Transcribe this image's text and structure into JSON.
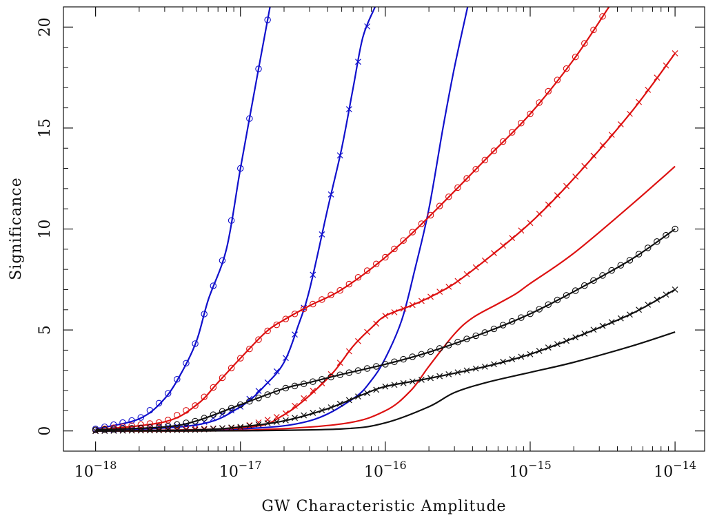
{
  "chart_data": {
    "type": "line",
    "title": "",
    "xlabel": "GW Characteristic Amplitude",
    "ylabel": "Significance",
    "x_scale": "log",
    "xlim": [
      6e-19,
      1.6e-14
    ],
    "ylim": [
      -1,
      21
    ],
    "x_ticks": [
      {
        "value": 1e-18,
        "base": "10",
        "exp": "−18"
      },
      {
        "value": 1e-17,
        "base": "10",
        "exp": "−17"
      },
      {
        "value": 1e-16,
        "base": "10",
        "exp": "−16"
      },
      {
        "value": 1e-15,
        "base": "10",
        "exp": "−15"
      },
      {
        "value": 1e-14,
        "base": "10",
        "exp": "−14"
      }
    ],
    "y_ticks": [
      {
        "value": 0,
        "label": "0"
      },
      {
        "value": 5,
        "label": "5"
      },
      {
        "value": 10,
        "label": "10"
      },
      {
        "value": 15,
        "label": "15"
      },
      {
        "value": 20,
        "label": "20"
      }
    ],
    "grid": false,
    "legend": "none",
    "series": [
      {
        "color": "#1010cc",
        "marker": "circle",
        "x": [
          1e-18,
          2e-18,
          3e-18,
          4e-18,
          5e-18,
          6e-18,
          8e-18,
          1e-17,
          1.3e-17,
          1.6e-17
        ],
        "y": [
          0.1,
          0.6,
          1.6,
          3.0,
          4.5,
          6.5,
          9.0,
          13.0,
          17.5,
          21.0
        ]
      },
      {
        "color": "#1010cc",
        "marker": "x",
        "x": [
          1e-18,
          5e-18,
          1e-17,
          1.5e-17,
          2e-17,
          2.5e-17,
          3e-17,
          4e-17,
          5e-17,
          6e-17,
          7e-17,
          8.5e-17
        ],
        "y": [
          0.0,
          0.3,
          1.2,
          2.3,
          3.4,
          5.2,
          7.0,
          11.0,
          14.0,
          17.0,
          19.5,
          21.0
        ]
      },
      {
        "color": "#1010cc",
        "marker": "none",
        "x": [
          1e-18,
          1e-17,
          3e-17,
          6e-17,
          8e-17,
          1e-16,
          1.3e-16,
          1.6e-16,
          2e-16,
          2.5e-16,
          3e-16,
          3.7e-16
        ],
        "y": [
          0.0,
          0.1,
          0.5,
          1.6,
          2.5,
          3.6,
          5.5,
          8.0,
          11.0,
          15.0,
          18.0,
          21.0
        ]
      },
      {
        "color": "#dd1111",
        "marker": "circle",
        "x": [
          1e-18,
          3e-18,
          5e-18,
          7e-18,
          1e-17,
          1.5e-17,
          2e-17,
          3e-17,
          5e-17,
          1e-16,
          2e-16,
          5e-16,
          1e-15,
          2e-15,
          3.5e-15
        ],
        "y": [
          0.05,
          0.45,
          1.3,
          2.4,
          3.6,
          4.9,
          5.5,
          6.2,
          7.0,
          8.6,
          10.6,
          13.5,
          15.7,
          18.4,
          21.0
        ]
      },
      {
        "color": "#dd1111",
        "marker": "x",
        "x": [
          1e-18,
          1e-17,
          2e-17,
          4e-17,
          6e-17,
          8e-17,
          1e-16,
          1.5e-16,
          2e-16,
          3e-16,
          5e-16,
          1e-15,
          2e-15,
          5e-15,
          1e-14
        ],
        "y": [
          0.0,
          0.15,
          0.8,
          2.6,
          4.2,
          5.1,
          5.7,
          6.2,
          6.6,
          7.3,
          8.5,
          10.3,
          12.5,
          15.8,
          18.7
        ]
      },
      {
        "color": "#dd1111",
        "marker": "none",
        "x": [
          1e-18,
          1e-17,
          5e-17,
          1e-16,
          1.5e-16,
          2e-16,
          3e-16,
          4e-16,
          6e-16,
          8e-16,
          1e-15,
          2e-15,
          5e-15,
          1e-14
        ],
        "y": [
          0.0,
          0.03,
          0.35,
          1.0,
          2.0,
          3.2,
          4.8,
          5.6,
          6.3,
          6.8,
          7.3,
          8.8,
          11.2,
          13.1
        ]
      },
      {
        "color": "#111111",
        "marker": "circle",
        "x": [
          1e-18,
          3e-18,
          5e-18,
          1e-17,
          2e-17,
          3e-17,
          5e-17,
          1e-16,
          2e-16,
          5e-16,
          1e-15,
          2e-15,
          5e-15,
          1e-14
        ],
        "y": [
          0.05,
          0.2,
          0.5,
          1.3,
          2.1,
          2.4,
          2.8,
          3.3,
          3.9,
          4.9,
          5.8,
          6.9,
          8.5,
          10.0
        ]
      },
      {
        "color": "#111111",
        "marker": "x",
        "x": [
          1e-18,
          5e-18,
          1e-17,
          2e-17,
          4e-17,
          7e-17,
          1e-16,
          2e-16,
          5e-16,
          1e-15,
          2e-15,
          5e-15,
          1e-14
        ],
        "y": [
          0.0,
          0.05,
          0.2,
          0.5,
          1.1,
          1.8,
          2.2,
          2.6,
          3.2,
          3.8,
          4.6,
          5.8,
          7.0
        ]
      },
      {
        "color": "#111111",
        "marker": "none",
        "x": [
          1e-18,
          1e-17,
          5e-17,
          1e-16,
          2e-16,
          3e-16,
          5e-16,
          1e-15,
          2e-15,
          5e-15,
          1e-14
        ],
        "y": [
          0.0,
          0.01,
          0.1,
          0.4,
          1.2,
          1.9,
          2.4,
          2.9,
          3.4,
          4.2,
          4.9
        ]
      }
    ]
  }
}
